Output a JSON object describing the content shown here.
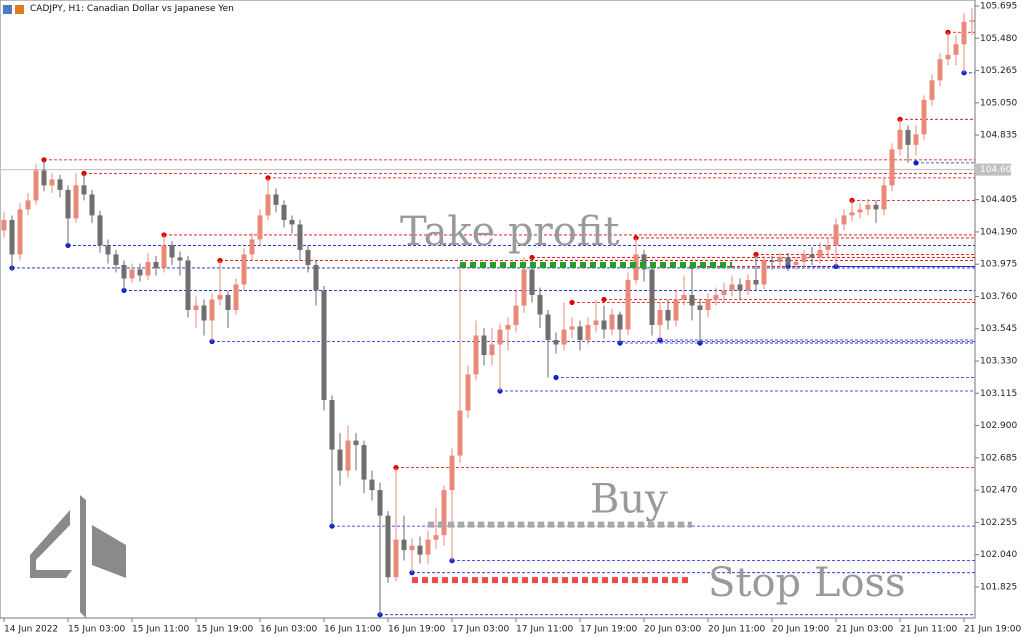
{
  "chart_data": {
    "type": "candlestick",
    "title": "CADJPY, H1:  Canadian Dollar vs Japanese Yen",
    "up_color": "#e8897a",
    "down_color": "#6e6e6e",
    "ylim": [
      101.618,
      105.735
    ],
    "yticks": [
      105.695,
      {
        "value": 105.48,
        "label": "105.480"
      },
      105.265,
      {
        "value": 105.05,
        "label": "105.050"
      },
      104.835,
      104.405,
      {
        "value": 104.19,
        "label": "104.190"
      },
      103.975,
      {
        "value": 103.76,
        "label": "103.760"
      },
      103.545,
      {
        "value": 103.33,
        "label": "103.330"
      },
      103.115,
      {
        "value": 102.9,
        "label": "102.900"
      },
      102.685,
      {
        "value": 102.47,
        "label": "102.470"
      },
      102.255,
      {
        "value": 102.04,
        "label": "102.040"
      },
      101.825
    ],
    "current_price": 104.605,
    "xticks": [
      {
        "value": 0,
        "label": "14 Jun 2022"
      },
      {
        "value": 8,
        "label": "15 Jun 03:00"
      },
      {
        "value": 16,
        "label": "15 Jun 11:00"
      },
      {
        "value": 24,
        "label": "15 Jun 19:00"
      },
      {
        "value": 32,
        "label": "16 Jun 03:00"
      },
      {
        "value": 40,
        "label": "16 Jun 11:00"
      },
      {
        "value": 48,
        "label": "16 Jun 19:00"
      },
      {
        "value": 56,
        "label": "17 Jun 03:00"
      },
      {
        "value": 64,
        "label": "17 Jun 11:00"
      },
      {
        "value": 72,
        "label": "17 Jun 19:00"
      },
      {
        "value": 80,
        "label": "20 Jun 03:00"
      },
      {
        "value": 88,
        "label": "20 Jun 11:00"
      },
      {
        "value": 96,
        "label": "20 Jun 19:00"
      },
      {
        "value": 104,
        "label": "21 Jun 03:00"
      },
      {
        "value": 112,
        "label": "21 Jun 11:00"
      },
      {
        "value": 120,
        "label": "21 Jun 19:00"
      }
    ],
    "ohlc": [
      [
        104.2,
        104.32,
        104.15,
        104.27
      ],
      [
        104.27,
        104.3,
        103.93,
        104.04
      ],
      [
        104.04,
        104.38,
        104.0,
        104.34
      ],
      [
        104.34,
        104.45,
        104.3,
        104.4
      ],
      [
        104.4,
        104.64,
        104.37,
        104.6
      ],
      [
        104.6,
        104.67,
        104.46,
        104.5
      ],
      [
        104.5,
        104.58,
        104.45,
        104.54
      ],
      [
        104.54,
        104.57,
        104.42,
        104.47
      ],
      [
        104.47,
        104.5,
        104.1,
        104.28
      ],
      [
        104.28,
        104.58,
        104.25,
        104.5
      ],
      [
        104.5,
        104.58,
        104.4,
        104.44
      ],
      [
        104.44,
        104.47,
        104.25,
        104.3
      ],
      [
        104.3,
        104.33,
        104.05,
        104.1
      ],
      [
        104.1,
        104.14,
        103.98,
        104.04
      ],
      [
        104.04,
        104.07,
        103.92,
        103.97
      ],
      [
        103.97,
        104.0,
        103.8,
        103.88
      ],
      [
        103.88,
        103.98,
        103.85,
        103.94
      ],
      [
        103.94,
        103.98,
        103.86,
        103.9
      ],
      [
        103.9,
        104.05,
        103.87,
        103.99
      ],
      [
        103.99,
        104.03,
        103.9,
        103.95
      ],
      [
        103.95,
        104.17,
        103.92,
        104.1
      ],
      [
        104.1,
        104.13,
        103.97,
        104.02
      ],
      [
        104.02,
        104.06,
        103.9,
        104.0
      ],
      [
        104.0,
        104.03,
        103.62,
        103.67
      ],
      [
        103.67,
        103.76,
        103.55,
        103.7
      ],
      [
        103.7,
        103.74,
        103.5,
        103.6
      ],
      [
        103.6,
        103.78,
        103.46,
        103.74
      ],
      [
        103.74,
        104.0,
        103.7,
        103.77
      ],
      [
        103.77,
        103.8,
        103.55,
        103.67
      ],
      [
        103.67,
        103.88,
        103.64,
        103.84
      ],
      [
        103.84,
        104.08,
        103.8,
        104.04
      ],
      [
        104.04,
        104.18,
        104.0,
        104.14
      ],
      [
        104.14,
        104.34,
        104.1,
        104.3
      ],
      [
        104.3,
        104.55,
        104.27,
        104.44
      ],
      [
        104.44,
        104.48,
        104.32,
        104.37
      ],
      [
        104.37,
        104.4,
        104.22,
        104.27
      ],
      [
        104.27,
        104.3,
        104.18,
        104.24
      ],
      [
        104.24,
        104.27,
        104.0,
        104.07
      ],
      [
        104.07,
        104.1,
        103.92,
        103.97
      ],
      [
        103.97,
        104.0,
        103.7,
        103.8
      ],
      [
        103.8,
        103.83,
        103.0,
        103.07
      ],
      [
        103.07,
        103.1,
        102.23,
        102.74
      ],
      [
        102.74,
        102.85,
        102.5,
        102.6
      ],
      [
        102.6,
        102.9,
        102.55,
        102.8
      ],
      [
        102.8,
        102.85,
        102.6,
        102.77
      ],
      [
        102.77,
        102.8,
        102.45,
        102.54
      ],
      [
        102.54,
        102.6,
        102.4,
        102.47
      ],
      [
        102.47,
        102.52,
        101.64,
        102.3
      ],
      [
        102.3,
        102.33,
        101.85,
        101.89
      ],
      [
        101.89,
        102.62,
        101.86,
        102.14
      ],
      [
        102.14,
        102.3,
        102.0,
        102.07
      ],
      [
        102.07,
        102.15,
        101.92,
        102.1
      ],
      [
        102.1,
        102.16,
        101.98,
        102.04
      ],
      [
        102.04,
        102.2,
        101.98,
        102.14
      ],
      [
        102.14,
        102.35,
        102.08,
        102.17
      ],
      [
        102.17,
        102.5,
        102.1,
        102.47
      ],
      [
        102.47,
        102.75,
        102.0,
        102.7
      ],
      [
        102.7,
        103.97,
        102.65,
        103.0
      ],
      [
        103.0,
        103.3,
        102.95,
        103.24
      ],
      [
        103.24,
        103.6,
        103.2,
        103.5
      ],
      [
        103.5,
        103.55,
        103.3,
        103.37
      ],
      [
        103.37,
        103.55,
        103.3,
        103.44
      ],
      [
        103.44,
        103.58,
        103.13,
        103.54
      ],
      [
        103.54,
        103.62,
        103.4,
        103.57
      ],
      [
        103.57,
        103.8,
        103.52,
        103.7
      ],
      [
        103.7,
        104.02,
        103.65,
        103.94
      ],
      [
        103.94,
        104.02,
        103.72,
        103.77
      ],
      [
        103.77,
        103.82,
        103.55,
        103.64
      ],
      [
        103.64,
        103.67,
        103.22,
        103.47
      ],
      [
        103.47,
        103.52,
        103.38,
        103.44
      ],
      [
        103.44,
        103.72,
        103.4,
        103.54
      ],
      [
        103.54,
        103.62,
        103.48,
        103.56
      ],
      [
        103.56,
        103.6,
        103.4,
        103.47
      ],
      [
        103.47,
        103.62,
        103.44,
        103.57
      ],
      [
        103.57,
        103.74,
        103.52,
        103.6
      ],
      [
        103.6,
        103.7,
        103.48,
        103.54
      ],
      [
        103.54,
        103.68,
        103.5,
        103.64
      ],
      [
        103.64,
        103.66,
        103.45,
        103.54
      ],
      [
        103.54,
        103.92,
        103.5,
        103.87
      ],
      [
        103.87,
        104.15,
        103.84,
        104.04
      ],
      [
        104.04,
        104.07,
        103.86,
        103.94
      ],
      [
        103.94,
        103.97,
        103.5,
        103.57
      ],
      [
        103.57,
        103.72,
        103.47,
        103.67
      ],
      [
        103.67,
        103.74,
        103.54,
        103.6
      ],
      [
        103.6,
        103.8,
        103.56,
        103.74
      ],
      [
        103.74,
        103.9,
        103.7,
        103.77
      ],
      [
        103.77,
        103.96,
        103.6,
        103.7
      ],
      [
        103.7,
        103.74,
        103.45,
        103.67
      ],
      [
        103.67,
        103.78,
        103.62,
        103.74
      ],
      [
        103.74,
        103.82,
        103.7,
        103.77
      ],
      [
        103.77,
        103.85,
        103.72,
        103.8
      ],
      [
        103.8,
        103.9,
        103.76,
        103.84
      ],
      [
        103.84,
        103.88,
        103.74,
        103.8
      ],
      [
        103.8,
        103.91,
        103.77,
        103.87
      ],
      [
        103.87,
        104.04,
        103.8,
        103.84
      ],
      [
        103.84,
        104.03,
        103.81,
        104.0
      ],
      [
        104.0,
        104.03,
        103.94,
        103.99
      ],
      [
        103.99,
        104.05,
        103.95,
        104.02
      ],
      [
        104.02,
        104.05,
        103.93,
        103.97
      ],
      [
        103.97,
        104.02,
        103.94,
        103.99
      ],
      [
        103.99,
        104.07,
        103.95,
        104.04
      ],
      [
        104.04,
        104.09,
        103.97,
        104.02
      ],
      [
        104.02,
        104.12,
        103.98,
        104.07
      ],
      [
        104.07,
        104.15,
        104.02,
        104.1
      ],
      [
        104.1,
        104.28,
        103.96,
        104.24
      ],
      [
        104.24,
        104.34,
        104.2,
        104.3
      ],
      [
        104.3,
        104.4,
        104.26,
        104.32
      ],
      [
        104.32,
        104.38,
        104.28,
        104.34
      ],
      [
        104.34,
        104.41,
        104.3,
        104.37
      ],
      [
        104.37,
        104.4,
        104.25,
        104.34
      ],
      [
        104.34,
        104.55,
        104.3,
        104.5
      ],
      [
        104.5,
        104.78,
        104.46,
        104.74
      ],
      [
        104.74,
        104.94,
        104.7,
        104.87
      ],
      [
        104.87,
        104.9,
        104.65,
        104.77
      ],
      [
        104.77,
        104.9,
        104.7,
        104.84
      ],
      [
        104.84,
        105.1,
        104.8,
        105.07
      ],
      [
        105.07,
        105.24,
        105.03,
        105.2
      ],
      [
        105.2,
        105.38,
        105.16,
        105.34
      ],
      [
        105.34,
        105.52,
        105.3,
        105.37
      ],
      [
        105.37,
        105.5,
        105.3,
        105.44
      ],
      [
        105.44,
        105.65,
        105.25,
        105.59
      ],
      [
        105.59,
        105.68,
        105.5,
        105.6
      ]
    ],
    "resistance_color": "#e00000",
    "resistance_levels": [
      {
        "price": 104.67,
        "index": 5
      },
      {
        "price": 104.58,
        "index": 10
      },
      {
        "price": 104.17,
        "index": 20
      },
      {
        "price": 104.0,
        "index": 27
      },
      {
        "price": 104.55,
        "index": 33
      },
      {
        "price": 102.62,
        "index": 49
      },
      {
        "price": 104.02,
        "index": 66
      },
      {
        "price": 103.72,
        "index": 71
      },
      {
        "price": 103.74,
        "index": 75
      },
      {
        "price": 104.15,
        "index": 79
      },
      {
        "price": 103.96,
        "index": 86
      },
      {
        "price": 104.04,
        "index": 94
      },
      {
        "price": 104.4,
        "index": 106
      },
      {
        "price": 104.94,
        "index": 112
      },
      {
        "price": 105.52,
        "index": 118
      }
    ],
    "support_color": "#1020d0",
    "support_levels": [
      {
        "price": 103.95,
        "index": 1
      },
      {
        "price": 104.1,
        "index": 8
      },
      {
        "price": 103.8,
        "index": 15
      },
      {
        "price": 103.46,
        "index": 26
      },
      {
        "price": 102.23,
        "index": 41
      },
      {
        "price": 101.64,
        "index": 47
      },
      {
        "price": 101.92,
        "index": 51
      },
      {
        "price": 102.0,
        "index": 56
      },
      {
        "price": 103.13,
        "index": 62
      },
      {
        "price": 103.22,
        "index": 69
      },
      {
        "price": 103.45,
        "index": 77
      },
      {
        "price": 103.47,
        "index": 82
      },
      {
        "price": 103.45,
        "index": 87
      },
      {
        "price": 103.96,
        "index": 98
      },
      {
        "price": 103.96,
        "index": 104
      },
      {
        "price": 104.65,
        "index": 114
      },
      {
        "price": 105.25,
        "index": 120
      }
    ],
    "annotations": [
      {
        "text": "Take profit",
        "price": 103.97,
        "from": 57,
        "to": 91,
        "color": "#22a02a"
      },
      {
        "text": "Buy",
        "price": 102.24,
        "from": 53,
        "to": 86,
        "color": "#a8a8a8"
      },
      {
        "text": "Stop Loss",
        "price": 101.87,
        "from": 51,
        "to": 86,
        "color": "#f04848"
      }
    ]
  }
}
